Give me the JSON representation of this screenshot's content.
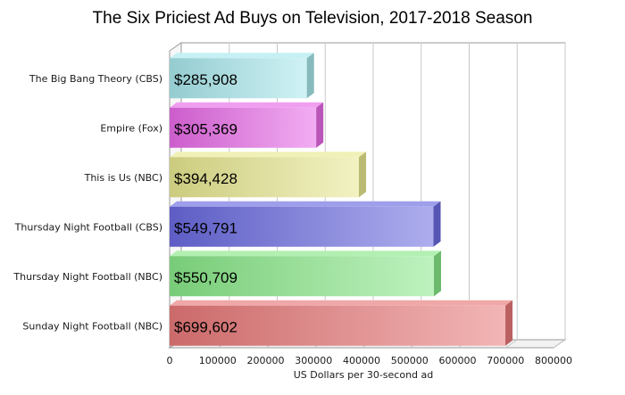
{
  "chart_data": {
    "type": "bar",
    "orientation": "horizontal",
    "title": "The Six Priciest Ad Buys on Television, 2017-2018 Season",
    "xlabel": "US Dollars per 30-second ad",
    "ylabel": "",
    "xlim": [
      0,
      800000
    ],
    "xticks": [
      "0",
      "100000",
      "200000",
      "300000",
      "400000",
      "500000",
      "600000",
      "700000",
      "800000"
    ],
    "grid": true,
    "legend": "none",
    "categories": [
      "The Big Bang Theory (CBS)",
      "Empire (Fox)",
      "This is Us (NBC)",
      "Thursday Night Football (CBS)",
      "Thursday Night Football (NBC)",
      "Sunday Night Football (NBC)"
    ],
    "values": [
      285908,
      305369,
      394428,
      549791,
      550709,
      699602
    ],
    "data_labels": [
      "$285,908",
      "$305,369",
      "$394,428",
      "$549,791",
      "$550,709",
      "$699,602"
    ],
    "colors": [
      "#a8e8ec",
      "#e86ae8",
      "#e8e890",
      "#6a6ae0",
      "#88e888",
      "#e87878"
    ]
  }
}
